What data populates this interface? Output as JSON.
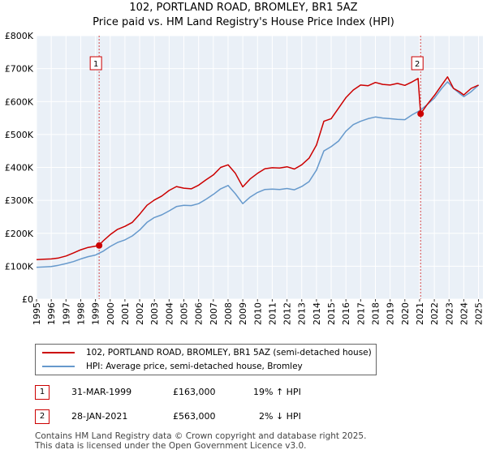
{
  "title_line1": "102, PORTLAND ROAD, BROMLEY, BR1 5AZ",
  "title_line2": "Price paid vs. HM Land Registry's House Price Index (HPI)",
  "colors": {
    "red": "#cc0000",
    "blue": "#6699cc",
    "grid": "#e3e8ee",
    "plot_bg": "#eaf0f7"
  },
  "chart_data": {
    "type": "line",
    "xlabel": "",
    "ylabel": "",
    "xlim": [
      1995,
      2025.3
    ],
    "ylim": [
      0,
      800000
    ],
    "x_ticks": [
      1995,
      1996,
      1997,
      1998,
      1999,
      2000,
      2001,
      2002,
      2003,
      2004,
      2005,
      2006,
      2007,
      2008,
      2009,
      2010,
      2011,
      2012,
      2013,
      2014,
      2015,
      2016,
      2017,
      2018,
      2019,
      2020,
      2021,
      2022,
      2023,
      2024,
      2025
    ],
    "y_ticks": [
      {
        "value": 0,
        "label": "£0"
      },
      {
        "value": 100000,
        "label": "£100K"
      },
      {
        "value": 200000,
        "label": "£200K"
      },
      {
        "value": 300000,
        "label": "£300K"
      },
      {
        "value": 400000,
        "label": "£400K"
      },
      {
        "value": 500000,
        "label": "£500K"
      },
      {
        "value": 600000,
        "label": "£600K"
      },
      {
        "value": 700000,
        "label": "£700K"
      },
      {
        "value": 800000,
        "label": "£800K"
      }
    ],
    "series": [
      {
        "name": "102, PORTLAND ROAD, BROMLEY, BR1 5AZ (semi-detached house)",
        "color": "#cc0000",
        "x": [
          1995.0,
          1995.5,
          1996.0,
          1996.5,
          1997.0,
          1997.5,
          1998.0,
          1998.5,
          1999.0,
          1999.25,
          1999.5,
          2000.0,
          2000.5,
          2001.0,
          2001.5,
          2002.0,
          2002.5,
          2003.0,
          2003.5,
          2004.0,
          2004.5,
          2005.0,
          2005.5,
          2006.0,
          2006.5,
          2007.0,
          2007.5,
          2008.0,
          2008.5,
          2009.0,
          2009.5,
          2010.0,
          2010.5,
          2011.0,
          2011.5,
          2012.0,
          2012.5,
          2013.0,
          2013.5,
          2014.0,
          2014.5,
          2015.0,
          2015.5,
          2016.0,
          2016.5,
          2017.0,
          2017.5,
          2018.0,
          2018.5,
          2019.0,
          2019.5,
          2020.0,
          2020.5,
          2020.9,
          2021.07,
          2021.5,
          2022.0,
          2022.5,
          2022.9,
          2023.3,
          2023.7,
          2024.0,
          2024.5,
          2025.0
        ],
        "y": [
          120000,
          121000,
          122000,
          125000,
          131000,
          140000,
          150000,
          157000,
          161000,
          163000,
          176000,
          196000,
          212000,
          221000,
          233000,
          258000,
          285000,
          301000,
          313000,
          330000,
          342000,
          337000,
          335000,
          346000,
          362000,
          377000,
          400000,
          408000,
          382000,
          341000,
          365000,
          382000,
          396000,
          399000,
          398000,
          402000,
          395000,
          408000,
          428000,
          468000,
          540000,
          548000,
          580000,
          612000,
          635000,
          650000,
          648000,
          658000,
          652000,
          650000,
          655000,
          649000,
          660000,
          670000,
          563000,
          590000,
          618000,
          650000,
          675000,
          640000,
          630000,
          620000,
          640000,
          650000
        ]
      },
      {
        "name": "HPI: Average price, semi-detached house, Bromley",
        "color": "#6699cc",
        "x": [
          1995.0,
          1995.5,
          1996.0,
          1996.5,
          1997.0,
          1997.5,
          1998.0,
          1998.5,
          1999.0,
          1999.5,
          2000.0,
          2000.5,
          2001.0,
          2001.5,
          2002.0,
          2002.5,
          2003.0,
          2003.5,
          2004.0,
          2004.5,
          2005.0,
          2005.5,
          2006.0,
          2006.5,
          2007.0,
          2007.5,
          2008.0,
          2008.5,
          2009.0,
          2009.5,
          2010.0,
          2010.5,
          2011.0,
          2011.5,
          2012.0,
          2012.5,
          2013.0,
          2013.5,
          2014.0,
          2014.5,
          2015.0,
          2015.5,
          2016.0,
          2016.5,
          2017.0,
          2017.5,
          2018.0,
          2018.5,
          2019.0,
          2019.5,
          2020.0,
          2020.5,
          2021.0,
          2021.5,
          2022.0,
          2022.5,
          2022.9,
          2023.3,
          2023.7,
          2024.0,
          2024.5,
          2025.0
        ],
        "y": [
          97000,
          98000,
          99000,
          103000,
          108000,
          114000,
          122000,
          129000,
          134000,
          145000,
          160000,
          172000,
          180000,
          192000,
          210000,
          233000,
          248000,
          256000,
          268000,
          281000,
          285000,
          284000,
          290000,
          303000,
          318000,
          335000,
          345000,
          320000,
          290000,
          310000,
          324000,
          333000,
          334000,
          333000,
          336000,
          332000,
          342000,
          357000,
          392000,
          450000,
          463000,
          480000,
          510000,
          530000,
          540000,
          548000,
          553000,
          550000,
          548000,
          546000,
          545000,
          560000,
          572000,
          590000,
          610000,
          640000,
          660000,
          640000,
          625000,
          615000,
          630000,
          650000
        ]
      }
    ],
    "markers": [
      {
        "label": "1",
        "x": 1999.25,
        "y": 163000
      },
      {
        "label": "2",
        "x": 2021.07,
        "y": 563000
      }
    ]
  },
  "legend": [
    {
      "label": "102, PORTLAND ROAD, BROMLEY, BR1 5AZ (semi-detached house)",
      "color": "#cc0000"
    },
    {
      "label": "HPI: Average price, semi-detached house, Bromley",
      "color": "#6699cc"
    }
  ],
  "transactions": [
    {
      "num": "1",
      "date": "31-MAR-1999",
      "price": "£163,000",
      "hpi": "19% ↑ HPI"
    },
    {
      "num": "2",
      "date": "28-JAN-2021",
      "price": "£563,000",
      "hpi": "2% ↓ HPI"
    }
  ],
  "footer_line1": "Contains HM Land Registry data © Crown copyright and database right 2025.",
  "footer_line2": "This data is licensed under the Open Government Licence v3.0."
}
